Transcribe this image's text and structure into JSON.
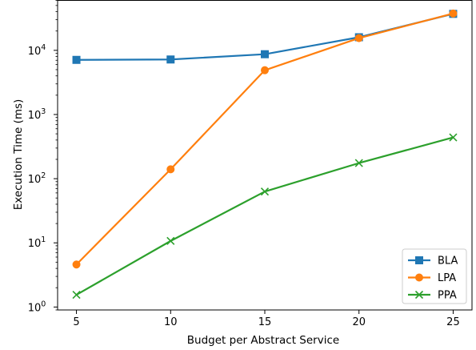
{
  "chart_data": {
    "type": "line",
    "title": "",
    "xlabel": "Budget per Abstract Service",
    "ylabel": "Execution Time (ms)",
    "yscale": "log",
    "x": [
      5,
      10,
      15,
      20,
      25
    ],
    "xlim": [
      4.0,
      26.0
    ],
    "ylim": [
      0.9,
      60000
    ],
    "grid": false,
    "legend_position": "lower right",
    "x_ticks": [
      {
        "value": 5,
        "label": "5"
      },
      {
        "value": 10,
        "label": "10"
      },
      {
        "value": 15,
        "label": "15"
      },
      {
        "value": 20,
        "label": "20"
      },
      {
        "value": 25,
        "label": "25"
      }
    ],
    "y_ticks": [
      {
        "value": 1,
        "base": "10",
        "exp": "0"
      },
      {
        "value": 10,
        "base": "10",
        "exp": "1"
      },
      {
        "value": 100,
        "base": "10",
        "exp": "2"
      },
      {
        "value": 1000,
        "base": "10",
        "exp": "3"
      },
      {
        "value": 10000,
        "base": "10",
        "exp": "4"
      }
    ],
    "series": [
      {
        "name": "BLA",
        "color": "#1f77b4",
        "marker": "square",
        "values": [
          7100,
          7200,
          8700,
          16000,
          37000
        ]
      },
      {
        "name": "LPA",
        "color": "#ff7f0e",
        "marker": "circle",
        "values": [
          4.6,
          140,
          4900,
          15500,
          37500
        ]
      },
      {
        "name": "PPA",
        "color": "#2ca02c",
        "marker": "x",
        "values": [
          1.55,
          10.7,
          63,
          175,
          440
        ]
      }
    ]
  }
}
